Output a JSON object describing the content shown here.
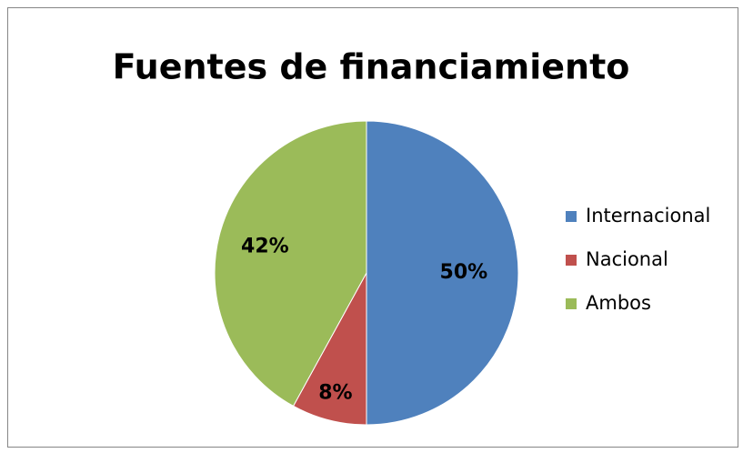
{
  "chart_data": {
    "type": "pie",
    "title": "Fuentes de financiamiento",
    "categories": [
      "Internacional",
      "Nacional",
      "Ambos"
    ],
    "values": [
      50,
      8,
      42
    ],
    "value_labels": [
      "50%",
      "8%",
      "42%"
    ],
    "colors": [
      "#4f81bd",
      "#c0504d",
      "#9bbb59"
    ],
    "legend": "right"
  }
}
